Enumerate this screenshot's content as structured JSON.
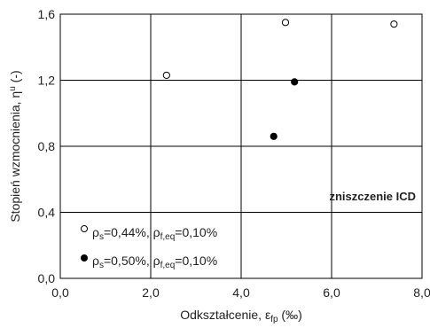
{
  "chart_data": {
    "type": "scatter",
    "xlabel": "Odkształcenie, ε",
    "xlabel_sub": "fp",
    "xlabel_unit": " (‰)",
    "ylabel": "Stopień wzmocnienia, η",
    "ylabel_sup": "u",
    "ylabel_unit": " (-)",
    "xlim": [
      0,
      8
    ],
    "ylim": [
      0,
      1.6
    ],
    "x_ticks": [
      0,
      2,
      4,
      6,
      8
    ],
    "y_ticks": [
      0,
      0.4,
      0.8,
      1.2,
      1.6
    ],
    "x_tick_labels": [
      "0,0",
      "2,0",
      "4,0",
      "6,0",
      "8,0"
    ],
    "y_tick_labels": [
      "0,0",
      "0,4",
      "0,8",
      "1,2",
      "1,6"
    ],
    "grid": true,
    "annotation": "zniszczenie ICD",
    "series": [
      {
        "name": "ρs=0,44%, ρf,eq=0,10%",
        "legend": {
          "rho": "ρ",
          "s": "s",
          "v1": "=0,44%, ",
          "rho2": "ρ",
          "f": "f,eq",
          "v2": "=0,10%"
        },
        "marker": "open-circle",
        "color": "#000000",
        "points": [
          {
            "x": 2.35,
            "y": 1.23
          },
          {
            "x": 4.98,
            "y": 1.55
          },
          {
            "x": 7.38,
            "y": 1.54
          }
        ]
      },
      {
        "name": "ρs=0,50%, ρf,eq=0,10%",
        "legend": {
          "rho": "ρ",
          "s": "s",
          "v1": "=0,50%, ",
          "rho2": "ρ",
          "f": "f,eq",
          "v2": "=0,10%"
        },
        "marker": "filled-circle",
        "color": "#000000",
        "points": [
          {
            "x": 4.72,
            "y": 0.86
          },
          {
            "x": 5.18,
            "y": 1.19
          }
        ]
      }
    ]
  }
}
